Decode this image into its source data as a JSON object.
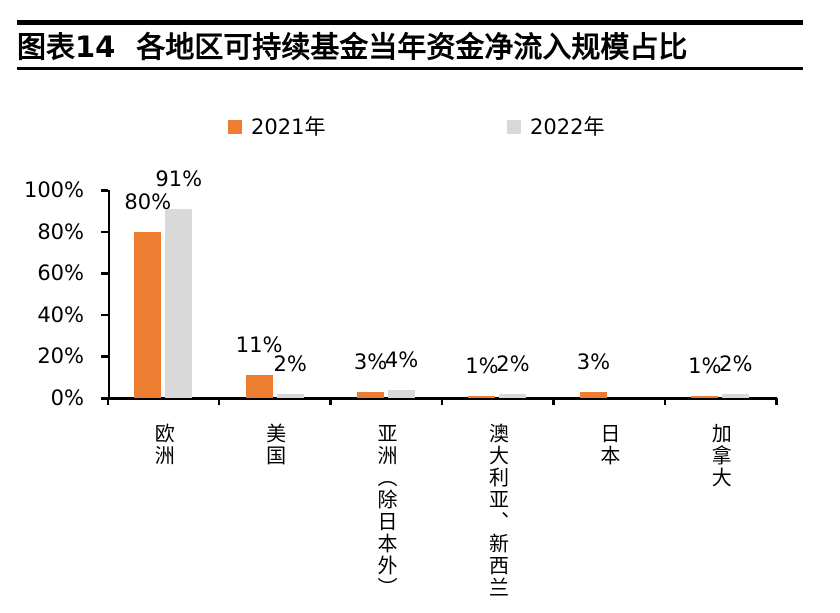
{
  "header": {
    "figure_label": "图表14",
    "figure_title": "各地区可持续基金当年资金净流入规模占比"
  },
  "chart_data": {
    "type": "bar",
    "title": "各地区可持续基金当年资金净流入规模占比",
    "categories": [
      "欧洲",
      "美国",
      "亚洲（除日本外）",
      "澳大利亚、新西兰",
      "日本",
      "加拿大"
    ],
    "series": [
      {
        "name": "2021年",
        "color": "#ED7D31",
        "values": [
          80,
          11,
          3,
          1,
          3,
          1
        ],
        "labels": [
          "80%",
          "11%",
          "3%",
          "1%",
          "3%",
          "1%"
        ]
      },
      {
        "name": "2022年",
        "color": "#D9D9D9",
        "values": [
          91,
          2,
          4,
          2,
          null,
          2
        ],
        "labels": [
          "91%",
          "2%",
          "4%",
          "2%",
          "",
          "2%"
        ]
      }
    ],
    "y_ticks": [
      "0%",
      "20%",
      "40%",
      "60%",
      "80%",
      "100%"
    ],
    "ylim": [
      0,
      100
    ],
    "xlabel": "",
    "ylabel": "",
    "grid": false,
    "legend_position": "top"
  }
}
